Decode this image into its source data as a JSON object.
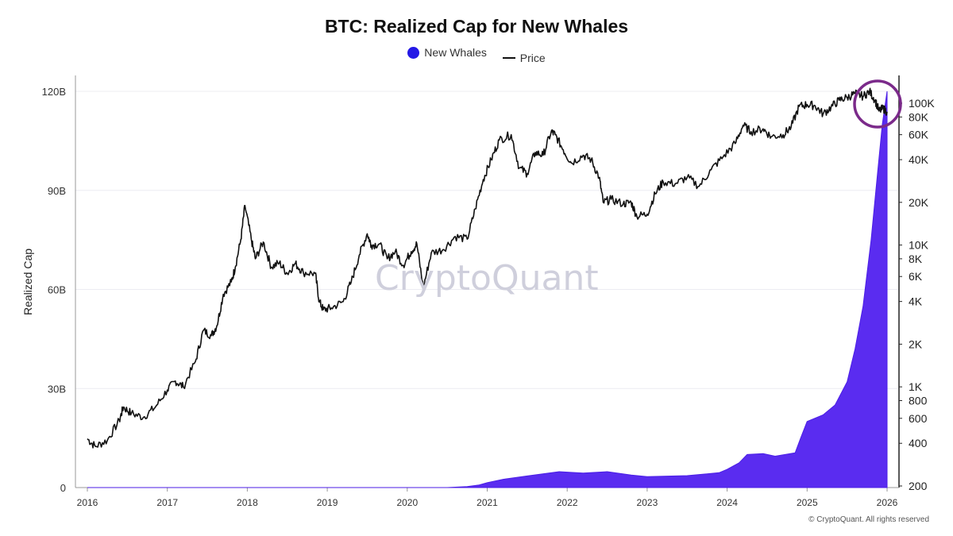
{
  "chart_data": {
    "type": "line",
    "title": "BTC: Realized Cap for New Whales",
    "legend": [
      {
        "name": "New Whales",
        "color": "#4b1ee6"
      },
      {
        "name": "Price",
        "color": "#111111"
      }
    ],
    "ylabel": "Realized Cap",
    "y_left": {
      "range": [
        0,
        120
      ],
      "ticks": [
        0,
        30,
        60,
        90,
        120
      ],
      "tick_labels": [
        "0",
        "30B",
        "60B",
        "90B",
        "120B"
      ]
    },
    "y_right": {
      "scale": "log",
      "range": [
        200,
        150000
      ],
      "ticks": [
        200,
        400,
        600,
        800,
        1000,
        2000,
        4000,
        6000,
        8000,
        10000,
        20000,
        40000,
        60000,
        80000,
        100000
      ],
      "tick_labels": [
        "200",
        "400",
        "600",
        "800",
        "1K",
        "2K",
        "4K",
        "6K",
        "8K",
        "10K",
        "20K",
        "40K",
        "60K",
        "80K",
        "100K"
      ]
    },
    "x_axis": {
      "range": [
        2016,
        2026
      ],
      "ticks": [
        2016,
        2017,
        2018,
        2019,
        2020,
        2021,
        2022,
        2023,
        2024,
        2025,
        2026
      ],
      "tick_labels": [
        "2016",
        "2017",
        "2018",
        "2019",
        "2020",
        "2021",
        "2022",
        "2023",
        "2024",
        "2025",
        "2026"
      ]
    },
    "series": [
      {
        "name": "Price",
        "type": "line",
        "axis": "right",
        "points": [
          [
            2016.0,
            430
          ],
          [
            2016.1,
            380
          ],
          [
            2016.25,
            420
          ],
          [
            2016.4,
            580
          ],
          [
            2016.45,
            720
          ],
          [
            2016.55,
            650
          ],
          [
            2016.7,
            610
          ],
          [
            2016.85,
            720
          ],
          [
            2017.0,
            950
          ],
          [
            2017.1,
            1100
          ],
          [
            2017.2,
            1000
          ],
          [
            2017.35,
            1500
          ],
          [
            2017.45,
            2500
          ],
          [
            2017.55,
            2300
          ],
          [
            2017.62,
            2700
          ],
          [
            2017.7,
            4500
          ],
          [
            2017.8,
            5500
          ],
          [
            2017.85,
            7000
          ],
          [
            2017.92,
            11000
          ],
          [
            2017.97,
            19000
          ],
          [
            2018.05,
            11000
          ],
          [
            2018.1,
            8000
          ],
          [
            2018.2,
            10500
          ],
          [
            2018.3,
            7000
          ],
          [
            2018.4,
            7500
          ],
          [
            2018.5,
            6300
          ],
          [
            2018.6,
            7400
          ],
          [
            2018.7,
            6400
          ],
          [
            2018.85,
            6300
          ],
          [
            2018.9,
            4000
          ],
          [
            2018.95,
            3500
          ],
          [
            2019.05,
            3600
          ],
          [
            2019.2,
            4000
          ],
          [
            2019.3,
            5500
          ],
          [
            2019.4,
            8500
          ],
          [
            2019.5,
            12000
          ],
          [
            2019.55,
            10000
          ],
          [
            2019.65,
            10200
          ],
          [
            2019.75,
            8000
          ],
          [
            2019.85,
            9000
          ],
          [
            2019.95,
            7200
          ],
          [
            2020.05,
            9000
          ],
          [
            2020.12,
            10200
          ],
          [
            2020.2,
            5000
          ],
          [
            2020.3,
            8800
          ],
          [
            2020.45,
            9300
          ],
          [
            2020.6,
            11500
          ],
          [
            2020.75,
            11000
          ],
          [
            2020.85,
            18000
          ],
          [
            2020.95,
            29000
          ],
          [
            2021.05,
            40000
          ],
          [
            2021.15,
            55000
          ],
          [
            2021.3,
            60000
          ],
          [
            2021.4,
            35000
          ],
          [
            2021.5,
            32000
          ],
          [
            2021.6,
            45000
          ],
          [
            2021.7,
            43000
          ],
          [
            2021.8,
            63000
          ],
          [
            2021.85,
            60000
          ],
          [
            2021.95,
            47000
          ],
          [
            2022.05,
            38000
          ],
          [
            2022.2,
            43000
          ],
          [
            2022.3,
            40000
          ],
          [
            2022.4,
            30000
          ],
          [
            2022.45,
            20000
          ],
          [
            2022.55,
            21000
          ],
          [
            2022.7,
            19500
          ],
          [
            2022.8,
            20000
          ],
          [
            2022.87,
            16000
          ],
          [
            2023.0,
            16500
          ],
          [
            2023.1,
            23000
          ],
          [
            2023.2,
            28000
          ],
          [
            2023.35,
            27000
          ],
          [
            2023.5,
            30000
          ],
          [
            2023.65,
            26000
          ],
          [
            2023.8,
            34000
          ],
          [
            2023.95,
            42000
          ],
          [
            2024.1,
            52000
          ],
          [
            2024.2,
            70000
          ],
          [
            2024.3,
            63000
          ],
          [
            2024.45,
            66000
          ],
          [
            2024.55,
            58000
          ],
          [
            2024.7,
            60000
          ],
          [
            2024.8,
            68000
          ],
          [
            2024.9,
            95000
          ],
          [
            2025.0,
            98000
          ],
          [
            2025.1,
            96000
          ],
          [
            2025.2,
            84000
          ],
          [
            2025.3,
            94000
          ],
          [
            2025.4,
            105000
          ],
          [
            2025.5,
            110000
          ],
          [
            2025.6,
            117000
          ],
          [
            2025.7,
            112000
          ],
          [
            2025.78,
            121000
          ],
          [
            2025.85,
            105000
          ],
          [
            2025.9,
            88000
          ],
          [
            2025.95,
            92000
          ],
          [
            2026.0,
            87000
          ]
        ]
      },
      {
        "name": "New Whales",
        "type": "area",
        "axis": "left",
        "points": [
          [
            2016.0,
            0
          ],
          [
            2020.5,
            0
          ],
          [
            2020.75,
            0.3
          ],
          [
            2020.9,
            0.8
          ],
          [
            2021.0,
            1.5
          ],
          [
            2021.2,
            2.5
          ],
          [
            2021.5,
            3.5
          ],
          [
            2021.9,
            4.8
          ],
          [
            2022.2,
            4.4
          ],
          [
            2022.5,
            4.8
          ],
          [
            2022.8,
            3.8
          ],
          [
            2023.0,
            3.3
          ],
          [
            2023.5,
            3.6
          ],
          [
            2023.9,
            4.5
          ],
          [
            2024.0,
            5.5
          ],
          [
            2024.15,
            7.5
          ],
          [
            2024.25,
            10.0
          ],
          [
            2024.45,
            10.3
          ],
          [
            2024.6,
            9.5
          ],
          [
            2024.85,
            10.5
          ],
          [
            2024.92,
            15.0
          ],
          [
            2025.0,
            20.0
          ],
          [
            2025.2,
            22.0
          ],
          [
            2025.35,
            25.0
          ],
          [
            2025.5,
            32.0
          ],
          [
            2025.6,
            42.0
          ],
          [
            2025.7,
            55.0
          ],
          [
            2025.8,
            75.0
          ],
          [
            2025.88,
            95.0
          ],
          [
            2025.94,
            110.0
          ],
          [
            2026.0,
            120.0
          ],
          [
            2026.0,
            0
          ]
        ]
      }
    ],
    "annotations": [
      {
        "type": "circle",
        "color": "#7b2a8a",
        "note": "highlighted recent price and realized cap peak"
      }
    ],
    "watermark": "CryptoQuant",
    "copyright": "© CryptoQuant. All rights reserved"
  }
}
